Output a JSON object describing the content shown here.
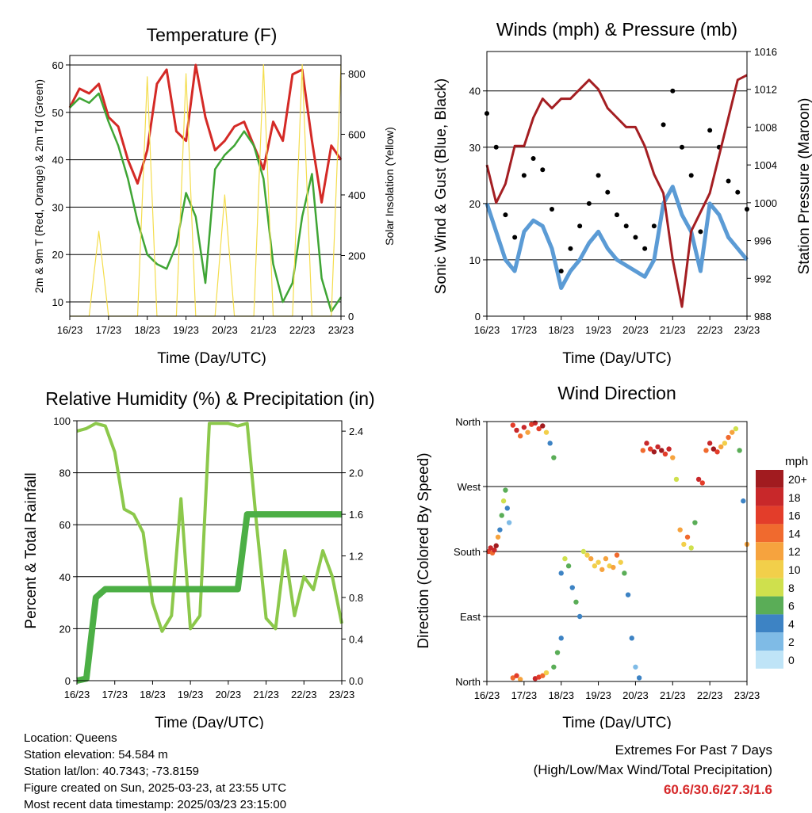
{
  "colors": {
    "temp": "#d42a26",
    "dewpoint": "#3fa535",
    "solar": "#f4dd4d",
    "gust": "#000000",
    "wind": "#5b9bd5",
    "pressure": "#a41e22",
    "rh": "#8cc84b",
    "precip": "#4caf45"
  },
  "x_ticks": [
    "16/23",
    "17/23",
    "18/23",
    "19/23",
    "20/23",
    "21/23",
    "22/23",
    "23/23"
  ],
  "footer": {
    "location": "Location: Queens",
    "elevation": "Station elevation: 54.584 m",
    "latlon": "Station lat/lon: 40.7343; -73.8159",
    "created": "Figure created on Sun, 2025-03-23, at 23:55 UTC",
    "recent": "Most recent data timestamp: 2025/03/23 23:15:00",
    "extremes_title": "Extremes For Past 7 Days",
    "extremes_subtitle": "(High/Low/Max Wind/Total Precipitation)",
    "extremes_values": "60.6/30.6/27.3/1.6"
  },
  "chart_data": [
    {
      "type": "line",
      "title": "Temperature (F)",
      "xlabel": "Time (Day/UTC)",
      "ylabel": "2m & 9m T (Red, Orange) & 2m Td (Green)",
      "ylabel_right": "Solar Insolation (Yellow)",
      "xlim": [
        0,
        7
      ],
      "ylim": [
        7,
        62
      ],
      "ylim_right": [
        0,
        860
      ],
      "y_ticks": [
        10,
        20,
        30,
        40,
        50,
        60
      ],
      "y_ticks_right": [
        0,
        200,
        400,
        600,
        800
      ],
      "x": [
        0,
        0.25,
        0.5,
        0.75,
        1,
        1.25,
        1.5,
        1.75,
        2,
        2.25,
        2.5,
        2.75,
        3,
        3.25,
        3.5,
        3.75,
        4,
        4.25,
        4.5,
        4.75,
        5,
        5.25,
        5.5,
        5.75,
        6,
        6.25,
        6.5,
        6.75,
        7
      ],
      "series": [
        {
          "key": "temp",
          "values": [
            51,
            55,
            54,
            56,
            49,
            47,
            40,
            35,
            42,
            56,
            59,
            46,
            44,
            60,
            49,
            42,
            44,
            47,
            48,
            43,
            38,
            48,
            44,
            58,
            59,
            44,
            31,
            43,
            40
          ]
        },
        {
          "key": "dewpoint",
          "values": [
            51,
            53,
            52,
            54,
            48,
            43,
            36,
            27,
            20,
            18,
            17,
            22,
            33,
            28,
            14,
            38,
            41,
            43,
            46,
            43,
            36,
            18,
            10,
            14,
            28,
            37,
            15,
            8,
            11
          ]
        },
        {
          "key": "solar",
          "values": [
            0,
            0,
            0,
            280,
            0,
            0,
            0,
            0,
            790,
            0,
            0,
            0,
            800,
            0,
            0,
            0,
            400,
            0,
            0,
            0,
            830,
            0,
            0,
            0,
            830,
            0,
            0,
            0,
            830
          ]
        }
      ]
    },
    {
      "type": "line",
      "title": "Winds (mph) & Pressure (mb)",
      "xlabel": "Time (Day/UTC)",
      "ylabel": "Sonic Wind & Gust (Blue, Black)",
      "ylabel_right": "Station Pressure (Maroon)",
      "xlim": [
        0,
        7
      ],
      "ylim": [
        0,
        47
      ],
      "ylim_right": [
        988,
        1016
      ],
      "y_ticks": [
        0,
        10,
        20,
        30,
        40
      ],
      "y_ticks_right": [
        988,
        992,
        996,
        1000,
        1004,
        1008,
        1012,
        1016
      ],
      "x": [
        0,
        0.25,
        0.5,
        0.75,
        1,
        1.25,
        1.5,
        1.75,
        2,
        2.25,
        2.5,
        2.75,
        3,
        3.25,
        3.5,
        3.75,
        4,
        4.25,
        4.5,
        4.75,
        5,
        5.25,
        5.5,
        5.75,
        6,
        6.25,
        6.5,
        6.75,
        7
      ],
      "series": [
        {
          "key": "wind",
          "values": [
            20,
            15,
            10,
            8,
            15,
            17,
            16,
            12,
            5,
            8,
            10,
            13,
            15,
            12,
            10,
            9,
            8,
            7,
            10,
            20,
            23,
            18,
            15,
            8,
            20,
            18,
            14,
            12,
            10
          ]
        },
        {
          "key": "gust",
          "values": [
            36,
            30,
            18,
            14,
            25,
            28,
            26,
            19,
            8,
            12,
            16,
            20,
            25,
            22,
            18,
            16,
            14,
            12,
            16,
            34,
            40,
            30,
            25,
            15,
            33,
            30,
            24,
            22,
            19
          ]
        },
        {
          "key": "pressure",
          "values": [
            1004,
            1000,
            1002,
            1006,
            1006,
            1009,
            1011,
            1010,
            1011,
            1011,
            1012,
            1013,
            1012,
            1010,
            1009,
            1008,
            1008,
            1006,
            1003,
            1001,
            994,
            989,
            997,
            999,
            1001,
            1005,
            1009,
            1013,
            1013.5
          ]
        }
      ]
    },
    {
      "type": "line",
      "title": "Relative Humidity (%) & Precipitation (in)",
      "xlabel": "Time (Day/UTC)",
      "ylabel": "Percent & Total Rainfall",
      "xlim": [
        0,
        7
      ],
      "ylim": [
        0,
        100
      ],
      "ylim_right": [
        0,
        2.5
      ],
      "y_ticks": [
        0,
        20,
        40,
        60,
        80,
        100
      ],
      "y_ticks_right": [
        0.0,
        0.4,
        0.8,
        1.2,
        1.6,
        2.0,
        2.4
      ],
      "x": [
        0,
        0.25,
        0.5,
        0.75,
        1,
        1.25,
        1.5,
        1.75,
        2,
        2.25,
        2.5,
        2.75,
        3,
        3.25,
        3.5,
        3.75,
        4,
        4.25,
        4.5,
        4.75,
        5,
        5.25,
        5.5,
        5.75,
        6,
        6.25,
        6.5,
        6.75,
        7
      ],
      "series": [
        {
          "key": "rh",
          "values": [
            96,
            97,
            99,
            98,
            88,
            66,
            64,
            57,
            30,
            19,
            25,
            70,
            20,
            25,
            99,
            99,
            99,
            98,
            99,
            60,
            24,
            20,
            50,
            25,
            40,
            35,
            50,
            40,
            22
          ]
        },
        {
          "key": "precip",
          "values": [
            0,
            0.02,
            0.8,
            0.88,
            0.88,
            0.88,
            0.88,
            0.88,
            0.88,
            0.88,
            0.88,
            0.88,
            0.88,
            0.88,
            0.88,
            0.88,
            0.88,
            0.88,
            1.6,
            1.6,
            1.6,
            1.6,
            1.6,
            1.6,
            1.6,
            1.6,
            1.6,
            1.6,
            1.6
          ]
        }
      ]
    },
    {
      "type": "scatter",
      "title": "Wind Direction",
      "xlabel": "Time (Day/UTC)",
      "ylabel": "Direction (Colored By Speed)",
      "xlim": [
        0,
        7
      ],
      "ylim": [
        0,
        360
      ],
      "y_ticks": [
        0,
        90,
        180,
        270,
        360
      ],
      "y_tick_labels": [
        "North",
        "East",
        "South",
        "West",
        "North"
      ],
      "colorbar": {
        "title": "mph",
        "labels": [
          "20+",
          "18",
          "16",
          "14",
          "12",
          "10",
          "8",
          "6",
          "4",
          "2",
          "0"
        ],
        "colors": [
          "#a11b1f",
          "#c8282a",
          "#e33d2a",
          "#f06a2e",
          "#f6a33e",
          "#f2cf4a",
          "#cfe04d",
          "#5aad57",
          "#3d83c4",
          "#7fbbe6",
          "#bfe4f7"
        ]
      },
      "points": [
        [
          0.05,
          180,
          16
        ],
        [
          0.1,
          185,
          18
        ],
        [
          0.15,
          178,
          14
        ],
        [
          0.2,
          182,
          17
        ],
        [
          0.25,
          188,
          19
        ],
        [
          0.3,
          200,
          12
        ],
        [
          0.35,
          210,
          4
        ],
        [
          0.4,
          230,
          6
        ],
        [
          0.45,
          250,
          8
        ],
        [
          0.5,
          265,
          5
        ],
        [
          0.55,
          240,
          3
        ],
        [
          0.6,
          220,
          2
        ],
        [
          0.7,
          355,
          16
        ],
        [
          0.8,
          348,
          18
        ],
        [
          0.9,
          340,
          14
        ],
        [
          1.0,
          352,
          17
        ],
        [
          1.1,
          345,
          12
        ],
        [
          1.2,
          356,
          16
        ],
        [
          1.3,
          358,
          18
        ],
        [
          1.4,
          350,
          15
        ],
        [
          1.5,
          354,
          20
        ],
        [
          1.6,
          345,
          9
        ],
        [
          1.7,
          330,
          4
        ],
        [
          1.8,
          310,
          6
        ],
        [
          0.7,
          5,
          14
        ],
        [
          0.8,
          8,
          16
        ],
        [
          0.9,
          3,
          12
        ],
        [
          1.3,
          4,
          18
        ],
        [
          1.4,
          6,
          16
        ],
        [
          1.5,
          8,
          14
        ],
        [
          1.6,
          12,
          10
        ],
        [
          1.8,
          20,
          5
        ],
        [
          1.9,
          40,
          6
        ],
        [
          2.0,
          60,
          3
        ],
        [
          2.0,
          150,
          4
        ],
        [
          2.1,
          170,
          7
        ],
        [
          2.2,
          160,
          6
        ],
        [
          2.3,
          130,
          4
        ],
        [
          2.4,
          110,
          5
        ],
        [
          2.5,
          90,
          3
        ],
        [
          2.6,
          180,
          8
        ],
        [
          2.7,
          175,
          10
        ],
        [
          2.8,
          170,
          12
        ],
        [
          2.9,
          160,
          10
        ],
        [
          3.0,
          165,
          9
        ],
        [
          3.1,
          155,
          11
        ],
        [
          3.2,
          170,
          12
        ],
        [
          3.3,
          160,
          10
        ],
        [
          3.4,
          158,
          11
        ],
        [
          3.5,
          175,
          13
        ],
        [
          3.6,
          165,
          9
        ],
        [
          3.7,
          150,
          6
        ],
        [
          3.8,
          120,
          4
        ],
        [
          3.9,
          60,
          3
        ],
        [
          4.0,
          20,
          2
        ],
        [
          4.1,
          5,
          4
        ],
        [
          4.2,
          320,
          14
        ],
        [
          4.3,
          330,
          18
        ],
        [
          4.4,
          322,
          16
        ],
        [
          4.5,
          318,
          20
        ],
        [
          4.6,
          325,
          17
        ],
        [
          4.7,
          320,
          19
        ],
        [
          4.8,
          315,
          16
        ],
        [
          4.9,
          322,
          18
        ],
        [
          5.0,
          310,
          12
        ],
        [
          5.1,
          280,
          8
        ],
        [
          5.2,
          210,
          12
        ],
        [
          5.3,
          190,
          10
        ],
        [
          5.4,
          200,
          14
        ],
        [
          5.5,
          185,
          8
        ],
        [
          5.6,
          220,
          6
        ],
        [
          5.7,
          280,
          18
        ],
        [
          5.8,
          275,
          16
        ],
        [
          5.9,
          320,
          14
        ],
        [
          6.0,
          330,
          18
        ],
        [
          6.1,
          322,
          20
        ],
        [
          6.2,
          318,
          16
        ],
        [
          6.3,
          325,
          12
        ],
        [
          6.4,
          330,
          10
        ],
        [
          6.5,
          338,
          14
        ],
        [
          6.6,
          345,
          12
        ],
        [
          6.7,
          350,
          8
        ],
        [
          6.8,
          320,
          6
        ],
        [
          6.9,
          250,
          4
        ],
        [
          7.0,
          190,
          12
        ]
      ]
    }
  ]
}
